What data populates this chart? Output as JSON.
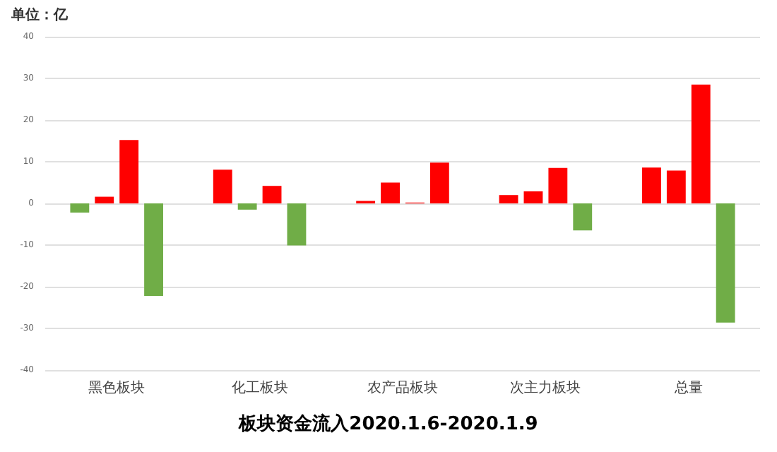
{
  "chart_data": {
    "type": "bar",
    "title": "板块资金流入2020.1.6-2020.1.9",
    "annotations": [
      "单位：亿"
    ],
    "categories": [
      "黑色板块",
      "化工板块",
      "农产品板块",
      "次主力板块",
      "总量"
    ],
    "series": [
      {
        "colors": [
          "#70ad47",
          "#ff0000",
          "#ff0000",
          "#ff0000",
          "#ff0000"
        ],
        "values": [
          -2.2,
          8.1,
          0.6,
          2.0,
          8.6
        ]
      },
      {
        "colors": [
          "#ff0000",
          "#70ad47",
          "#ff0000",
          "#ff0000",
          "#ff0000"
        ],
        "values": [
          1.6,
          -1.5,
          5.0,
          2.9,
          7.9
        ]
      },
      {
        "colors": [
          "#ff0000",
          "#ff0000",
          "#ff0000",
          "#ff0000",
          "#ff0000"
        ],
        "values": [
          15.2,
          4.2,
          0.2,
          8.5,
          28.5
        ]
      },
      {
        "colors": [
          "#70ad47",
          "#70ad47",
          "#ff0000",
          "#70ad47",
          "#70ad47"
        ],
        "values": [
          -22.2,
          -10.1,
          9.8,
          -6.5,
          -28.6
        ]
      }
    ],
    "ylim": [
      -40,
      40
    ],
    "yticks": [
      -40,
      -30,
      -20,
      -10,
      0,
      10,
      20,
      30,
      40
    ],
    "grid": "y"
  }
}
